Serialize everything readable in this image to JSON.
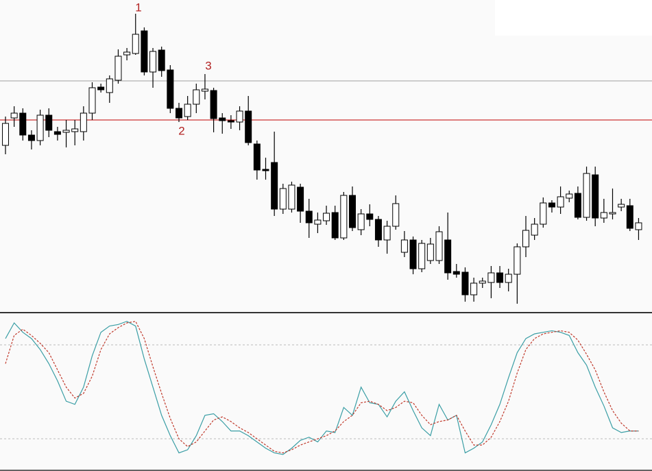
{
  "chart_data": [
    {
      "type": "candlestick",
      "open": [
        248,
        288,
        295,
        263,
        255,
        292,
        268,
        267,
        268,
        268,
        295,
        333,
        325,
        343,
        380,
        382,
        415,
        355,
        387,
        358,
        302,
        290,
        308,
        327,
        328,
        288,
        284,
        282,
        298,
        250,
        213,
        223,
        155,
        155,
        187,
        152,
        133,
        138,
        150,
        113,
        175,
        125,
        148,
        140,
        110,
        130,
        92,
        110,
        68,
        80,
        80,
        110,
        64,
        63,
        30,
        47,
        48,
        62,
        48,
        60,
        100,
        117,
        133,
        164,
        158,
        171,
        178,
        143,
        205,
        142,
        148,
        158,
        160,
        125
      ],
      "high": [
        290,
        305,
        302,
        270,
        300,
        302,
        275,
        285,
        285,
        305,
        340,
        338,
        350,
        388,
        390,
        440,
        420,
        390,
        392,
        365,
        310,
        320,
        338,
        352,
        332,
        295,
        292,
        305,
        320,
        255,
        230,
        268,
        192,
        195,
        192,
        170,
        150,
        160,
        160,
        180,
        188,
        155,
        162,
        145,
        138,
        175,
        123,
        115,
        110,
        113,
        130,
        150,
        75,
        70,
        55,
        55,
        72,
        72,
        68,
        105,
        145,
        142,
        172,
        168,
        188,
        182,
        188,
        217,
        217,
        170,
        185,
        170,
        170,
        142
      ],
      "low": [
        235,
        275,
        255,
        242,
        248,
        260,
        255,
        245,
        248,
        255,
        285,
        325,
        310,
        338,
        372,
        380,
        350,
        332,
        348,
        295,
        282,
        285,
        295,
        315,
        267,
        265,
        272,
        270,
        248,
        198,
        198,
        145,
        148,
        150,
        135,
        113,
        120,
        132,
        110,
        110,
        123,
        117,
        130,
        100,
        90,
        125,
        85,
        60,
        63,
        75,
        75,
        52,
        55,
        20,
        20,
        40,
        25,
        40,
        35,
        17,
        85,
        110,
        128,
        150,
        148,
        165,
        140,
        138,
        130,
        135,
        140,
        152,
        123,
        110
      ],
      "close": [
        280,
        295,
        263,
        255,
        292,
        270,
        264,
        270,
        272,
        295,
        332,
        329,
        345,
        378,
        384,
        410,
        355,
        385,
        357,
        302,
        288,
        308,
        329,
        330,
        287,
        284,
        282,
        298,
        252,
        212,
        211,
        155,
        185,
        190,
        152,
        135,
        139,
        149,
        113,
        175,
        128,
        148,
        140,
        110,
        130,
        163,
        110,
        68,
        105,
        104,
        122,
        62,
        60,
        30,
        47,
        50,
        62,
        48,
        60,
        100,
        124,
        133,
        164,
        158,
        173,
        177,
        143,
        207,
        142,
        150,
        150,
        162,
        127,
        135
      ],
      "up_color": "#ffffff",
      "down_color": "#000000",
      "ylim": [
        5,
        460
      ],
      "hlines": [
        {
          "value": 342,
          "color": "#a0a0a0"
        },
        {
          "value": 285,
          "color": "#c00000"
        }
      ],
      "annotations": [
        "1",
        "2",
        "3"
      ]
    },
    {
      "type": "line",
      "ylim": [
        0,
        100
      ],
      "levels": [
        20,
        80
      ],
      "series": [
        {
          "color": "#3a9ea5",
          "style": "solid",
          "values": [
            84,
            94,
            88,
            84,
            77,
            68,
            57,
            44,
            42,
            53,
            73,
            88,
            92,
            93,
            95,
            92,
            71,
            53,
            35,
            22,
            11,
            13,
            22,
            35,
            36,
            31,
            25,
            25,
            22,
            18,
            14,
            11,
            10,
            14,
            19,
            21,
            18,
            25,
            24,
            40,
            35,
            53,
            43,
            42,
            34,
            44,
            50,
            38,
            27,
            22,
            42,
            32,
            35,
            11,
            14,
            18,
            29,
            42,
            59,
            75,
            84,
            87,
            88,
            89,
            88,
            86,
            75,
            67,
            53,
            41,
            27,
            24,
            25,
            25
          ]
        },
        {
          "color": "#c0392b",
          "style": "dashed",
          "values": [
            68,
            86,
            90,
            86,
            81,
            75,
            64,
            53,
            46,
            49,
            60,
            77,
            87,
            91,
            94,
            95,
            84,
            66,
            49,
            33,
            20,
            15,
            18,
            25,
            32,
            34,
            31,
            27,
            24,
            20,
            16,
            12,
            11,
            13,
            16,
            18,
            20,
            22,
            25,
            31,
            35,
            43,
            44,
            42,
            38,
            40,
            44,
            43,
            35,
            29,
            31,
            32,
            35,
            25,
            16,
            16,
            21,
            31,
            44,
            62,
            77,
            84,
            87,
            88,
            89,
            88,
            83,
            74,
            64,
            50,
            38,
            30,
            25,
            25
          ]
        }
      ]
    }
  ]
}
